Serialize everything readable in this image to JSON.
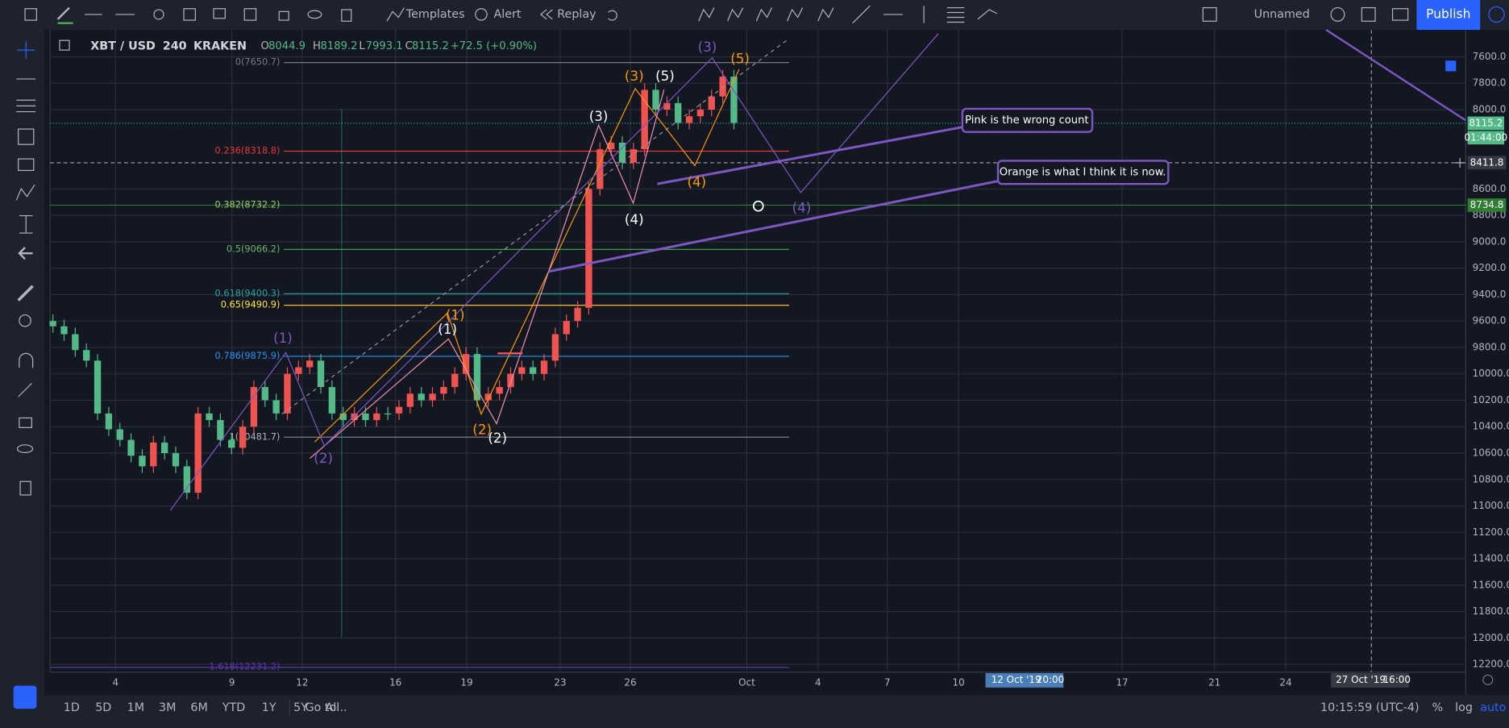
{
  "top_toolbar": {
    "templates": "Templates",
    "alert": "Alert",
    "replay": "Replay",
    "chart_name": "Unnamed",
    "publish": "Publish"
  },
  "legend": {
    "symbol": "XBT / USD",
    "interval": "240",
    "exchange": "KRAKEN",
    "open": {
      "label": "O",
      "value": "8044.9"
    },
    "high": {
      "label": "H",
      "value": "8189.2"
    },
    "low": {
      "label": "L",
      "value": "7993.1"
    },
    "close": {
      "label": "C",
      "value": "8115.2"
    },
    "change": "+72.5 (+0.90%)"
  },
  "fib_levels": [
    "0(7650.7)",
    "0.236(8318.8)",
    "0.382(8732.2)",
    "0.5(9066.2)",
    "0.618(9400.3)",
    "0.65(9490.9)",
    "0.786(9875.9)",
    "1(10481.7)",
    "1.618(12231.2)"
  ],
  "waves": [
    "(3)",
    "(5)",
    "(3)",
    "(5)",
    "(3)",
    "(4)",
    "(4)",
    "(4)",
    "(1)",
    "(1)",
    "(1)",
    "(2)",
    "(2)",
    "(2)"
  ],
  "annotations": [
    "Pink is the wrong count",
    "Orange is what I think it is now."
  ],
  "price_axis": {
    "labels": [
      {
        "value": 7600,
        "label": "7600.0"
      },
      {
        "value": 7800,
        "label": "7800.0"
      },
      {
        "value": 8000,
        "label": "8000.0"
      },
      {
        "value": 8600,
        "label": "8600.0"
      },
      {
        "value": 8800,
        "label": "8800.0"
      },
      {
        "value": 9000,
        "label": "9000.0"
      },
      {
        "value": 9200,
        "label": "9200.0"
      },
      {
        "value": 9400,
        "label": "9400.0"
      },
      {
        "value": 9600,
        "label": "9600.0"
      },
      {
        "value": 9800,
        "label": "9800.0"
      },
      {
        "value": 10000,
        "label": "10000.0"
      },
      {
        "value": 10200,
        "label": "10200.0"
      },
      {
        "value": 10400,
        "label": "10400.0"
      },
      {
        "value": 10600,
        "label": "10600.0"
      },
      {
        "value": 10800,
        "label": "10800.0"
      },
      {
        "value": 11000,
        "label": "11000.0"
      },
      {
        "value": 11200,
        "label": "11200.0"
      },
      {
        "value": 11400,
        "label": "11400.0"
      },
      {
        "value": 11600,
        "label": "11600.0"
      },
      {
        "value": 11800,
        "label": "11800.0"
      },
      {
        "value": 12000,
        "label": "12000.0"
      },
      {
        "value": 12200,
        "label": "12200.0"
      }
    ],
    "last_price": "8115.2",
    "countdown": "01:44:00",
    "crosshair": "8411.8",
    "alert_price": "8734.8"
  },
  "time_axis": {
    "labels": [
      "4",
      "9",
      "12",
      "16",
      "19",
      "23",
      "26",
      "Oct",
      "4",
      "7",
      "10",
      "17",
      "21",
      "24"
    ],
    "crosshair_date": "12 Oct '19",
    "crosshair_time": "20:00",
    "vline_date": "27 Oct '19",
    "vline_time": "16:00"
  },
  "candles": [
    [
      9600,
      9690,
      9550,
      9640
    ],
    [
      9640,
      9750,
      9590,
      9700
    ],
    [
      9700,
      9870,
      9650,
      9820
    ],
    [
      9820,
      9950,
      9770,
      9900
    ],
    [
      9900,
      10350,
      9850,
      10300
    ],
    [
      10300,
      10470,
      10250,
      10420
    ],
    [
      10420,
      10550,
      10370,
      10500
    ],
    [
      10500,
      10670,
      10450,
      10620
    ],
    [
      10620,
      10750,
      10570,
      10700
    ],
    [
      10700,
      10750,
      10470,
      10520
    ],
    [
      10520,
      10650,
      10470,
      10600
    ],
    [
      10600,
      10750,
      10550,
      10700
    ],
    [
      10700,
      10950,
      10650,
      10900
    ],
    [
      10900,
      10950,
      10250,
      10300
    ],
    [
      10300,
      10400,
      10250,
      10350
    ],
    [
      10350,
      10550,
      10300,
      10500
    ],
    [
      10500,
      10610,
      10450,
      10560
    ],
    [
      10560,
      10610,
      10350,
      10400
    ],
    [
      10400,
      10450,
      10050,
      10100
    ],
    [
      10100,
      10250,
      10050,
      10200
    ],
    [
      10200,
      10350,
      10150,
      10300
    ],
    [
      10300,
      10350,
      9950,
      10000
    ],
    [
      10000,
      10050,
      9900,
      9950
    ],
    [
      9950,
      10000,
      9850,
      9900
    ],
    [
      9900,
      10150,
      9850,
      10100
    ],
    [
      10100,
      10350,
      10050,
      10300
    ],
    [
      10300,
      10400,
      10250,
      10350
    ],
    [
      10350,
      10400,
      10250,
      10300
    ],
    [
      10300,
      10400,
      10250,
      10350
    ],
    [
      10350,
      10400,
      10250,
      10300
    ],
    [
      10300,
      10350,
      10250,
      10300
    ],
    [
      10300,
      10350,
      10200,
      10250
    ],
    [
      10250,
      10300,
      10100,
      10150
    ],
    [
      10150,
      10250,
      10100,
      10200
    ],
    [
      10200,
      10250,
      10100,
      10150
    ],
    [
      10150,
      10200,
      10050,
      10100
    ],
    [
      10100,
      10150,
      9950,
      10000
    ],
    [
      10000,
      10050,
      9800,
      9850
    ],
    [
      9850,
      10250,
      9800,
      10200
    ],
    [
      10200,
      10250,
      10100,
      10150
    ],
    [
      10150,
      10200,
      10050,
      10100
    ],
    [
      10100,
      10150,
      9950,
      10000
    ],
    [
      10000,
      10050,
      9900,
      9950
    ],
    [
      9950,
      10050,
      9900,
      10000
    ],
    [
      10000,
      10050,
      9850,
      9900
    ],
    [
      9900,
      9950,
      9650,
      9700
    ],
    [
      9700,
      9750,
      9550,
      9600
    ],
    [
      9600,
      9650,
      9450,
      9500
    ],
    [
      9500,
      9550,
      8550,
      8600
    ],
    [
      8600,
      8650,
      8250,
      8300
    ],
    [
      8300,
      8350,
      8200,
      8250
    ],
    [
      8250,
      8450,
      8200,
      8400
    ],
    [
      8400,
      8450,
      8250,
      8300
    ],
    [
      8300,
      8350,
      7800,
      7850
    ],
    [
      7850,
      8050,
      7800,
      8000
    ],
    [
      8000,
      8050,
      7900,
      7950
    ],
    [
      7950,
      8150,
      7900,
      8100
    ],
    [
      8100,
      8150,
      8000,
      8050
    ],
    [
      8050,
      8100,
      7950,
      8000
    ],
    [
      8000,
      8050,
      7850,
      7900
    ],
    [
      7900,
      7950,
      7700,
      7750
    ],
    [
      7750,
      8150,
      7700,
      8100
    ]
  ],
  "bottom_bar": {
    "ranges": [
      "1D",
      "5D",
      "1M",
      "3M",
      "6M",
      "YTD",
      "1Y",
      "5Y",
      "All"
    ],
    "goto": "Go to...",
    "clock": "10:15:59 (UTC-4)",
    "percent": "%",
    "log": "log",
    "auto": "auto"
  }
}
